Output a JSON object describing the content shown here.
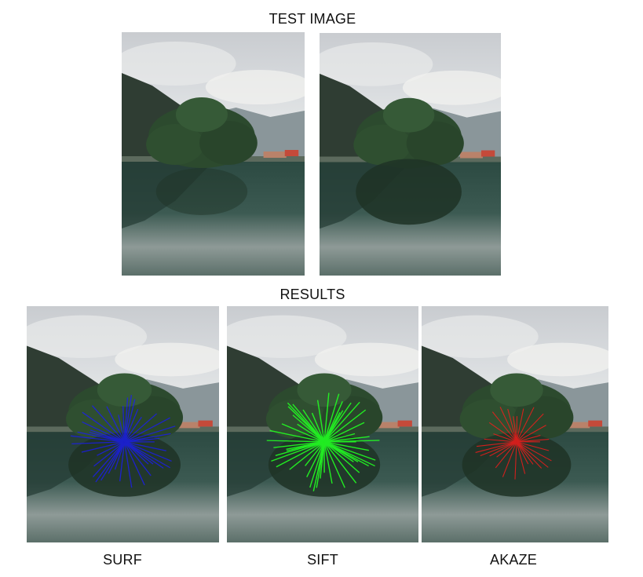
{
  "test_section": {
    "title": "TEST IMAGE"
  },
  "results_section": {
    "title": "RESULTS"
  },
  "methods": [
    {
      "label": "SURF",
      "line_color": "#1a1aff"
    },
    {
      "label": "SIFT",
      "line_color": "#22ff22"
    },
    {
      "label": "AKAZE",
      "line_color": "#ff1a1a"
    }
  ],
  "scene": {
    "sky_color": "#d9dcdf",
    "mountain_color": "#2f3d33",
    "tree_color": "#2c4a2e",
    "water_color": "#3c5a52"
  }
}
